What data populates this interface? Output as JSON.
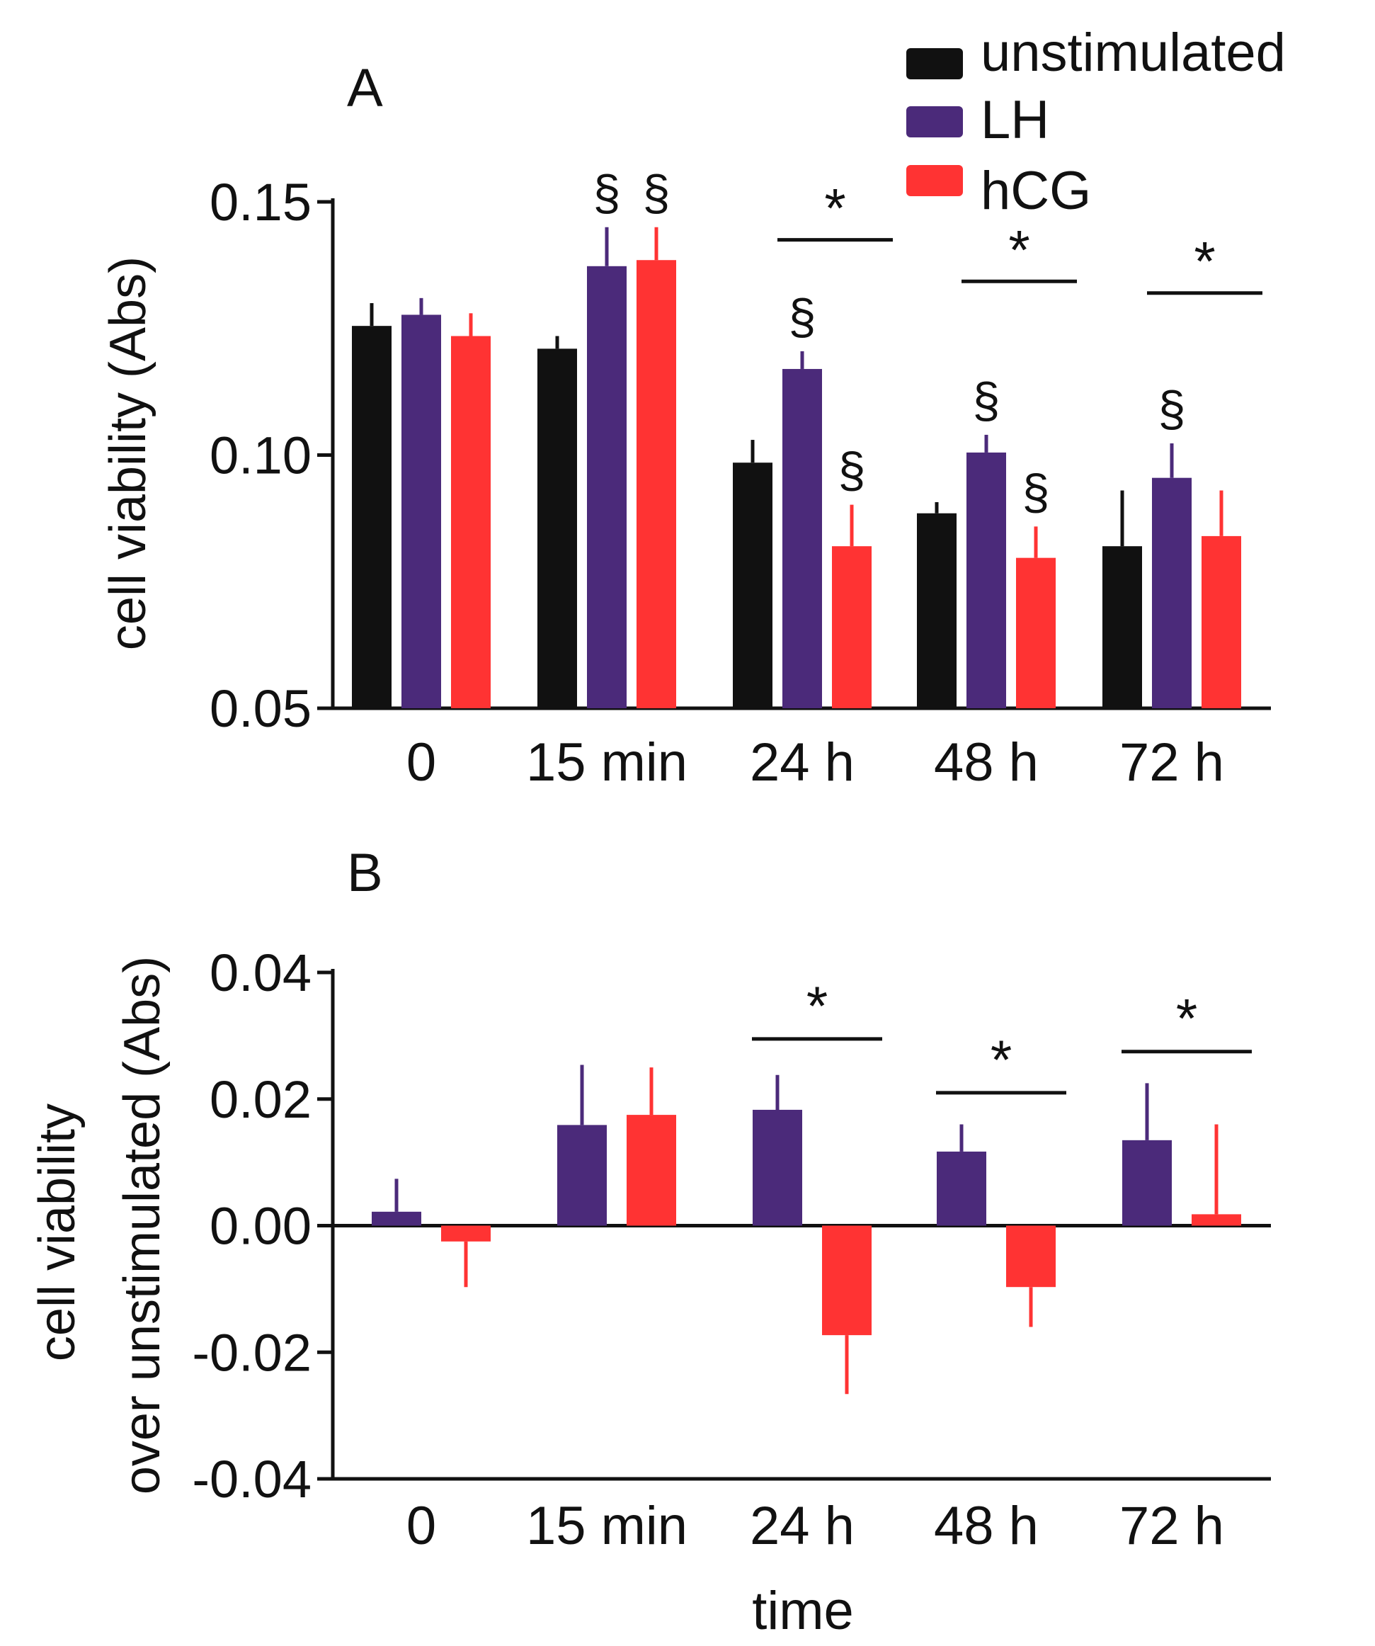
{
  "legend": {
    "items": [
      {
        "label": "unstimulated",
        "color": "#111111"
      },
      {
        "label": "LH",
        "color": "#4b2a7a"
      },
      {
        "label": "hCG",
        "color": "#ff3333"
      }
    ]
  },
  "chart_data": [
    {
      "panel": "A",
      "type": "bar",
      "ylabel": "cell viability (Abs)",
      "xlabel": "",
      "categories": [
        "0",
        "15 min",
        "24 h",
        "48 h",
        "72 h"
      ],
      "ylim": [
        0.05,
        0.15
      ],
      "yticks": [
        "0.05",
        "0.10",
        "0.15"
      ],
      "ytick_values": [
        0.05,
        0.1,
        0.15
      ],
      "series": [
        {
          "name": "unstimulated",
          "color": "#111111",
          "values": [
            0.1255,
            0.121,
            0.0985,
            0.0885,
            0.082
          ],
          "errors": [
            0.0045,
            0.0025,
            0.0045,
            0.0022,
            0.011
          ]
        },
        {
          "name": "LH",
          "color": "#4b2a7a",
          "values": [
            0.1277,
            0.1373,
            0.117,
            0.1005,
            0.0955
          ],
          "errors": [
            0.0033,
            0.0077,
            0.0035,
            0.0035,
            0.0068
          ]
        },
        {
          "name": "hCG",
          "color": "#ff3333",
          "values": [
            0.1235,
            0.1385,
            0.082,
            0.0797,
            0.084
          ],
          "errors": [
            0.0045,
            0.0065,
            0.0082,
            0.0062,
            0.009
          ]
        }
      ],
      "section_marks": [
        {
          "category": 1,
          "series": 1,
          "symbol": "§"
        },
        {
          "category": 1,
          "series": 2,
          "symbol": "§"
        },
        {
          "category": 2,
          "series": 1,
          "symbol": "§"
        },
        {
          "category": 2,
          "series": 2,
          "symbol": "§"
        },
        {
          "category": 3,
          "series": 1,
          "symbol": "§"
        },
        {
          "category": 3,
          "series": 2,
          "symbol": "§"
        },
        {
          "category": 4,
          "series": 1,
          "symbol": "§"
        }
      ],
      "significance": [
        {
          "category": 2,
          "symbol": "*",
          "level": 0.1425
        },
        {
          "category": 3,
          "symbol": "*",
          "level": 0.1343
        },
        {
          "category": 4,
          "symbol": "*",
          "level": 0.132
        }
      ]
    },
    {
      "panel": "B",
      "type": "bar",
      "ylabel": "cell viability over unstimulated (Abs)",
      "xlabel": "time",
      "categories": [
        "0",
        "15 min",
        "24 h",
        "48 h",
        "72 h"
      ],
      "ylim": [
        -0.04,
        0.04
      ],
      "yticks": [
        "-0.04",
        "-0.02",
        "0.00",
        "0.02",
        "0.04"
      ],
      "ytick_values": [
        -0.04,
        -0.02,
        0.0,
        0.02,
        0.04
      ],
      "series": [
        {
          "name": "LH",
          "color": "#4b2a7a",
          "values": [
            0.0022,
            0.0159,
            0.0183,
            0.0117,
            0.0135
          ],
          "errors": [
            0.0052,
            0.0095,
            0.0055,
            0.0043,
            0.009
          ]
        },
        {
          "name": "hCG",
          "color": "#ff3333",
          "values": [
            -0.0025,
            0.0175,
            -0.0173,
            -0.0097,
            0.0018
          ],
          "errors": [
            0.0072,
            0.0075,
            0.0093,
            0.0063,
            0.0142
          ]
        }
      ],
      "significance": [
        {
          "category": 2,
          "symbol": "*",
          "level": 0.0295
        },
        {
          "category": 3,
          "symbol": "*",
          "level": 0.021
        },
        {
          "category": 4,
          "symbol": "*",
          "level": 0.0275
        }
      ]
    }
  ]
}
